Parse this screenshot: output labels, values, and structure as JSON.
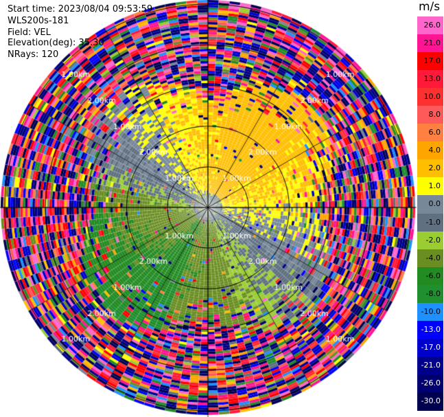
{
  "info": {
    "start_time": "Start time: 2023/08/04 09:53:59",
    "instrument": "WLS200s-181",
    "field": "Field: VEL",
    "elevation": "Elevation(deg): 35.30",
    "nrays": "NRays: 120"
  },
  "colorbar": {
    "unit": "m/s",
    "ticks": [
      "26.0",
      "21.0",
      "17.0",
      "13.0",
      "10.0",
      "8.0",
      "6.0",
      "4.0",
      "2.0",
      "1.0",
      "0.0",
      "-1.0",
      "-2.0",
      "-4.0",
      "-6.0",
      "-8.0",
      "-10.0",
      "-13.0",
      "-17.0",
      "-21.0",
      "-26.0",
      "-30.0"
    ],
    "colors": [
      "#ff66cc",
      "#ff1493",
      "#ff0000",
      "#ff1a3a",
      "#ff3030",
      "#ff5a5a",
      "#ff8040",
      "#ffa500",
      "#ffbf00",
      "#ffff00",
      "#778899",
      "#607080",
      "#9acd32",
      "#6b8e23",
      "#228b22",
      "#1f8f2f",
      "#1e90ff",
      "#0000ff",
      "#0000cd",
      "#00008b",
      "#000070",
      "#000050"
    ],
    "text_colors": [
      "#000000",
      "#000000",
      "#000000",
      "#000000",
      "#000000",
      "#000000",
      "#000000",
      "#000000",
      "#000000",
      "#000000",
      "#000000",
      "#000000",
      "#000000",
      "#000000",
      "#000000",
      "#000000",
      "#000000",
      "#ffffff",
      "#ffffff",
      "#ffffff",
      "#ffffff",
      "#ffffff"
    ]
  },
  "chart_data": {
    "type": "heatmap",
    "title": "",
    "field": "VEL",
    "units": "m/s",
    "nrays": 120,
    "elevation_deg": 35.3,
    "range_ring_labels": [
      "1.00km",
      "2.00km"
    ],
    "rings_km": [
      1.0,
      2.0,
      3.0,
      4.0,
      5.0
    ],
    "max_range_km": 5.1,
    "clean_zone_radius_km": 3.1,
    "levels": [
      -30.0,
      -26.0,
      -21.0,
      -17.0,
      -13.0,
      -10.0,
      -8.0,
      -6.0,
      -4.0,
      -2.0,
      -1.0,
      0.0,
      1.0,
      2.0,
      4.0,
      6.0,
      8.0,
      10.0,
      13.0,
      17.0,
      21.0,
      26.0
    ],
    "palette": [
      "#000050",
      "#000070",
      "#00008b",
      "#0000cd",
      "#0000ff",
      "#1e90ff",
      "#1f8f2f",
      "#228b22",
      "#6b8e23",
      "#9acd32",
      "#607080",
      "#778899",
      "#ffff00",
      "#ffbf00",
      "#ffa500",
      "#ff8040",
      "#ff5a5a",
      "#ff3030",
      "#ff1a3a",
      "#ff0000",
      "#ff1493",
      "#ff66cc"
    ],
    "pattern": {
      "near_field": [
        {
          "sector": "north",
          "velocity": 2.0
        },
        {
          "sector": "west",
          "velocity": -2.5
        },
        {
          "sector": "southwest",
          "velocity": -4.0
        },
        {
          "sector": "south",
          "velocity": -1.0
        },
        {
          "sector": "east",
          "velocity": 1.5
        },
        {
          "sector": "center",
          "velocity": 0.0
        }
      ],
      "far_field": "noise"
    }
  }
}
